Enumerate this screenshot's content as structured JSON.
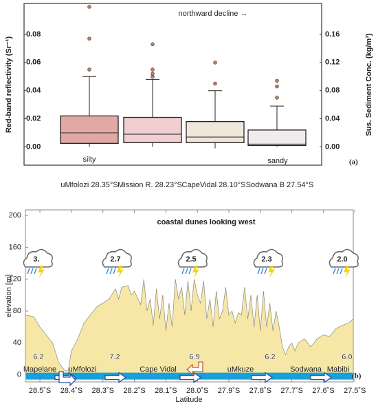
{
  "chart_data": [
    {
      "type": "box",
      "ylabel": "Red-band reflectivity (Sr⁻¹)",
      "y2label": "Sus. Sediment Conc. (kg/m³)",
      "annotations": [
        "northward decline →",
        "silty",
        "sandy"
      ],
      "panel": "(a)",
      "categories": [
        "uMfolozi 28.35°S",
        "Mission R. 28.23°S",
        "CapeVidal 28.10°S",
        "Sodwana B 27.54°S"
      ],
      "boxes": [
        {
          "min": 0.0,
          "q1": 0.0025,
          "median": 0.01,
          "q3": 0.022,
          "max": 0.05,
          "outliers": [
            0.055,
            0.077,
            0.0996
          ],
          "color": "#e2a9a4"
        },
        {
          "min": 0.0,
          "q1": 0.003,
          "median": 0.009,
          "q3": 0.021,
          "max": 0.048,
          "outliers": [
            0.05,
            0.052,
            0.055,
            0.073
          ],
          "color": "#efcfcf"
        },
        {
          "min": -0.001,
          "q1": 0.003,
          "median": 0.007,
          "q3": 0.018,
          "max": 0.04,
          "outliers": [
            0.045,
            0.06
          ],
          "color": "#efe6dc"
        },
        {
          "min": 0.0,
          "q1": 0.001,
          "median": 0.002,
          "q3": 0.012,
          "max": 0.029,
          "outliers": [
            0.035,
            0.043,
            0.047
          ],
          "color": "#f0ecec"
        }
      ],
      "outlier_color": "#c8805a",
      "ylim": [
        -0.013,
        0.102
      ],
      "yticks": [
        {
          "value": 0,
          "label": "0.00"
        },
        {
          "value": 0.02,
          "label": "0.02"
        },
        {
          "value": 0.04,
          "label": "0.04"
        },
        {
          "value": 0.06,
          "label": "0.06"
        },
        {
          "value": 0.08,
          "label": "0.08"
        }
      ],
      "y2lim": [
        -0.026,
        0.204
      ],
      "y2ticks": [
        {
          "value": 0,
          "label": "0.00"
        },
        {
          "value": 0.04,
          "label": "0.04"
        },
        {
          "value": 0.08,
          "label": "0.08"
        },
        {
          "value": 0.12,
          "label": "0.12"
        },
        {
          "value": 0.16,
          "label": "0.16"
        }
      ]
    },
    {
      "type": "area",
      "title": "coastal dunes looking west",
      "ylabel": "elevation [m]",
      "xlabel": "Latitude",
      "panel": "(b)",
      "color": "#f7e7a6",
      "x": [
        28.546,
        28.52,
        28.5,
        28.48,
        28.46,
        28.44,
        28.42,
        28.41,
        28.4,
        28.38,
        28.36,
        28.34,
        28.32,
        28.3,
        28.28,
        28.26,
        28.25,
        28.24,
        28.22,
        28.21,
        28.2,
        28.18,
        28.17,
        28.16,
        28.15,
        28.14,
        28.13,
        28.12,
        28.11,
        28.1,
        28.09,
        28.08,
        28.07,
        28.06,
        28.05,
        28.04,
        28.03,
        28.02,
        28.01,
        28.0,
        27.99,
        27.98,
        27.97,
        27.96,
        27.95,
        27.94,
        27.93,
        27.92,
        27.91,
        27.9,
        27.89,
        27.88,
        27.87,
        27.86,
        27.85,
        27.84,
        27.83,
        27.82,
        27.81,
        27.8,
        27.79,
        27.78,
        27.77,
        27.76,
        27.75,
        27.74,
        27.73,
        27.72,
        27.71,
        27.7,
        27.69,
        27.68,
        27.66,
        27.64,
        27.62,
        27.6,
        27.58,
        27.56,
        27.54,
        27.52,
        27.505
      ],
      "values": [
        75,
        73,
        60,
        50,
        40,
        15,
        5,
        5,
        30,
        45,
        65,
        75,
        85,
        90,
        95,
        108,
        95,
        110,
        112,
        100,
        105,
        88,
        120,
        80,
        95,
        62,
        108,
        70,
        100,
        55,
        90,
        60,
        120,
        95,
        110,
        75,
        118,
        80,
        120,
        100,
        90,
        118,
        70,
        95,
        60,
        105,
        70,
        80,
        110,
        75,
        80,
        65,
        78,
        75,
        110,
        70,
        100,
        60,
        100,
        55,
        105,
        60,
        90,
        55,
        80,
        60,
        35,
        25,
        35,
        40,
        30,
        40,
        45,
        35,
        45,
        50,
        48,
        58,
        62,
        65,
        70
      ],
      "place_labels": [
        "Mapelane",
        "uMfolozi",
        "Cape Vidal",
        "uMkuze",
        "Sodwana",
        "Mabibi"
      ],
      "height_labels": [
        "6.2",
        "7.2",
        "6.9",
        "6.2",
        "6.0"
      ],
      "storm_labels": [
        "3.",
        "2.7",
        "2.5",
        "2.3",
        "2.0"
      ],
      "xlim": [
        28.546,
        27.505
      ],
      "xticks": [
        {
          "value": 28.5,
          "label": "28.5˚S"
        },
        {
          "value": 28.4,
          "label": "28.4˚S"
        },
        {
          "value": 28.3,
          "label": "28.3˚S"
        },
        {
          "value": 28.2,
          "label": "28.2˚S"
        },
        {
          "value": 28.1,
          "label": "28.1˚S"
        },
        {
          "value": 28.0,
          "label": "28.0˚S"
        },
        {
          "value": 27.9,
          "label": "27.9˚S"
        },
        {
          "value": 27.8,
          "label": "27.8˚S"
        },
        {
          "value": 27.7,
          "label": "27.7˚S"
        },
        {
          "value": 27.6,
          "label": "27.6˚S"
        },
        {
          "value": 27.5,
          "label": "27.5˚S"
        }
      ],
      "ylim": [
        -9,
        207
      ],
      "yticks": [
        0,
        40,
        80,
        120,
        160,
        200
      ]
    }
  ]
}
